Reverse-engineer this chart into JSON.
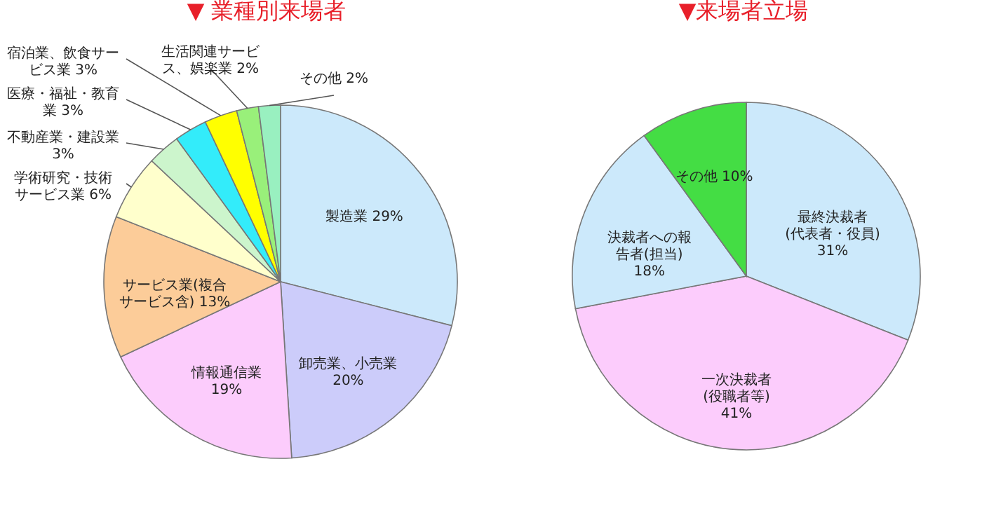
{
  "chart_data": [
    {
      "type": "pie",
      "title": "▼ 業種別来場者",
      "categories": [
        "製造業",
        "卸売業、小売業",
        "情報通信業",
        "サービス業(複合サービス含)",
        "学術研究・技術サービス業",
        "不動産業・建設業",
        "医療・福祉・教育業",
        "宿泊業、飲食サービス業",
        "生活関連サービス、娯楽業",
        "その他"
      ],
      "values": [
        29,
        20,
        19,
        13,
        6,
        3,
        3,
        3,
        2,
        2
      ],
      "colors": [
        "#cce9fb",
        "#ccccfa",
        "#fcccfc",
        "#fccc99",
        "#ffffcc",
        "#ccf5cc",
        "#33ecfa",
        "#ffff00",
        "#99f07a",
        "#99f0c0"
      ],
      "value_labels": [
        "29%",
        "20%",
        "19%",
        "13%",
        "6%",
        "3%",
        "3%",
        "3%",
        "2%",
        "2%"
      ]
    },
    {
      "type": "pie",
      "title": "▼来場者立場",
      "categories": [
        "最終決裁者(代表者・役員)",
        "一次決裁者(役職者等)",
        "決裁者への報告者(担当)",
        "その他"
      ],
      "values": [
        31,
        41,
        18,
        10
      ],
      "colors": [
        "#cce9fb",
        "#fcccfc",
        "#cce9fb",
        "#44dd44"
      ],
      "value_labels": [
        "31%",
        "41%",
        "18%",
        "10%"
      ]
    }
  ]
}
